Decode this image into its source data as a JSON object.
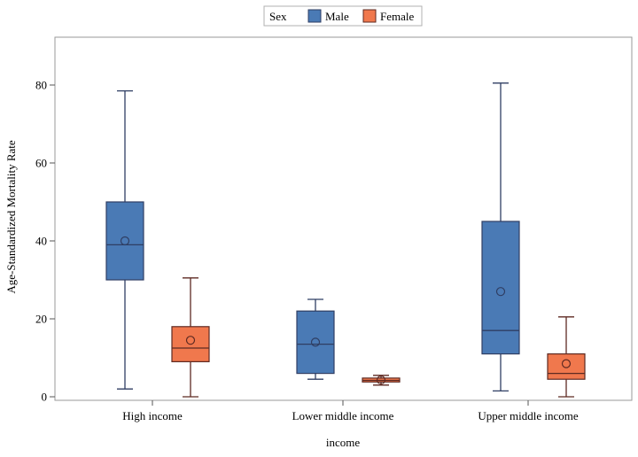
{
  "chart_data": {
    "type": "boxplot",
    "title": "",
    "xlabel": "income",
    "ylabel": "Age-Standardized Mortality Rate",
    "ylim": [
      0,
      92
    ],
    "yticks": [
      0,
      20,
      40,
      60,
      80
    ],
    "categories": [
      "High income",
      "Lower middle income",
      "Upper middle income"
    ],
    "legend": {
      "title": "Sex",
      "position": "top-center",
      "entries": [
        {
          "name": "Male",
          "color": "#4a7ab5"
        },
        {
          "name": "Female",
          "color": "#f0784d"
        }
      ]
    },
    "series": [
      {
        "name": "Male",
        "fill": "#4a7ab5",
        "line": "#2f3e63",
        "boxes": [
          {
            "category": "High income",
            "min": 2,
            "q1": 30,
            "median": 39,
            "q3": 50,
            "max": 78.5,
            "mean": 40
          },
          {
            "category": "Lower middle income",
            "min": 4.5,
            "q1": 6,
            "median": 13.5,
            "q3": 22,
            "max": 25,
            "mean": 14
          },
          {
            "category": "Upper middle income",
            "min": 1.5,
            "q1": 11,
            "median": 17,
            "q3": 45,
            "max": 80.5,
            "mean": 27
          }
        ]
      },
      {
        "name": "Female",
        "fill": "#f0784d",
        "line": "#5e2a22",
        "boxes": [
          {
            "category": "High income",
            "min": 0,
            "q1": 9,
            "median": 12.5,
            "q3": 18,
            "max": 30.5,
            "mean": 14.5
          },
          {
            "category": "Lower middle income",
            "min": 3,
            "q1": 3.8,
            "median": 4.2,
            "q3": 4.8,
            "max": 5.5,
            "mean": 4.3
          },
          {
            "category": "Upper middle income",
            "min": 0,
            "q1": 4.5,
            "median": 6,
            "q3": 11,
            "max": 20.5,
            "mean": 8.5
          }
        ]
      }
    ]
  }
}
